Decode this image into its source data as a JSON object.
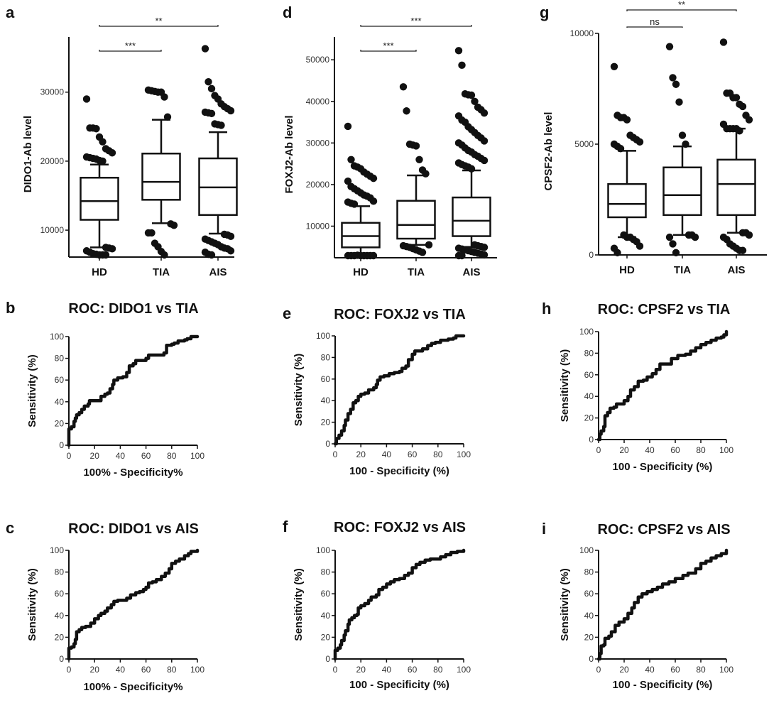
{
  "figure": {
    "panels": [
      "a",
      "b",
      "c",
      "d",
      "e",
      "f",
      "g",
      "h",
      "i"
    ]
  },
  "chart_data": [
    {
      "id": "a",
      "type": "box",
      "title": "",
      "panel_letter": "a",
      "ylabel": "DIDO1-Ab level",
      "xlabel": "",
      "categories": [
        "HD",
        "TIA",
        "AIS"
      ],
      "ylim": [
        6100,
        38000
      ],
      "yticks": [
        10000,
        20000,
        30000
      ],
      "ytick_labels": [
        "10000",
        "20000",
        "30000"
      ],
      "boxes": [
        {
          "name": "HD",
          "whisker_low": 7500,
          "q1": 11500,
          "median": 14200,
          "q3": 17600,
          "whisker_high": 19500,
          "outliers": [
            29000,
            24800,
            24800,
            24700,
            23500,
            22800,
            21800,
            21500,
            21200,
            20600,
            20500,
            20400,
            20300,
            20100,
            20000,
            7500,
            7400,
            7300,
            7000,
            6800,
            6600,
            6500,
            6400,
            6300,
            6200
          ]
        },
        {
          "name": "TIA",
          "whisker_low": 11000,
          "q1": 14400,
          "median": 17000,
          "q3": 21100,
          "whisker_high": 26000,
          "outliers": [
            30300,
            30200,
            30100,
            30000,
            30000,
            29300,
            26400,
            10900,
            10700,
            9600,
            9600,
            8100,
            7600,
            6900,
            6100
          ]
        },
        {
          "name": "AIS",
          "whisker_low": 9500,
          "q1": 12200,
          "median": 16200,
          "q3": 20400,
          "whisker_high": 24200,
          "outliers": [
            36300,
            31500,
            30500,
            29500,
            29000,
            28300,
            27900,
            27600,
            27300,
            27100,
            27000,
            26900,
            25400,
            25300,
            25200,
            9400,
            9300,
            9100,
            8700,
            8500,
            8300,
            8100,
            7900,
            7600,
            7400,
            7300,
            7000,
            6800,
            6500,
            6300
          ]
        }
      ],
      "significance": [
        {
          "from": "HD",
          "to": "TIA",
          "label": "***"
        },
        {
          "from": "HD",
          "to": "AIS",
          "label": "**"
        }
      ]
    },
    {
      "id": "d",
      "type": "box",
      "title": "",
      "panel_letter": "d",
      "ylabel": "FOXJ2-Ab level",
      "xlabel": "",
      "categories": [
        "HD",
        "TIA",
        "AIS"
      ],
      "ylim": [
        2400,
        55500
      ],
      "yticks": [
        10000,
        20000,
        30000,
        40000,
        50000
      ],
      "ytick_labels": [
        "10000",
        "20000",
        "30000",
        "40000",
        "50000"
      ],
      "boxes": [
        {
          "name": "HD",
          "whisker_low": 3000,
          "q1": 4900,
          "median": 7600,
          "q3": 10800,
          "whisker_high": 14800,
          "outliers": [
            34000,
            26000,
            24500,
            24200,
            23800,
            23000,
            22500,
            22000,
            21500,
            20800,
            19500,
            19000,
            18500,
            18000,
            17500,
            17200,
            16800,
            16000,
            15800,
            15500,
            15300,
            3000,
            2900,
            2800,
            2700,
            2600,
            2500,
            2500,
            2600,
            2800
          ]
        },
        {
          "name": "TIA",
          "whisker_low": 5500,
          "q1": 7000,
          "median": 10300,
          "q3": 16100,
          "whisker_high": 22200,
          "outliers": [
            43500,
            37700,
            29700,
            29500,
            29300,
            26000,
            23500,
            22600,
            5500,
            5300,
            5100,
            4900,
            4600,
            4300,
            4000,
            3700
          ]
        },
        {
          "name": "AIS",
          "whisker_low": 5000,
          "q1": 7600,
          "median": 11300,
          "q3": 16900,
          "whisker_high": 23400,
          "outliers": [
            52200,
            48700,
            41800,
            41600,
            41500,
            40000,
            38600,
            38000,
            37200,
            36500,
            35500,
            35000,
            33900,
            33200,
            32500,
            31800,
            31200,
            30500,
            30000,
            29500,
            28800,
            28200,
            27800,
            27200,
            26800,
            26300,
            25800,
            25200,
            24800,
            24500,
            24200,
            23800,
            5500,
            5300,
            5100,
            4900,
            4700,
            4500,
            4300,
            4100,
            3900,
            3700,
            3500,
            3300,
            3100,
            2900,
            2700
          ]
        }
      ],
      "significance": [
        {
          "from": "HD",
          "to": "TIA",
          "label": "***"
        },
        {
          "from": "HD",
          "to": "AIS",
          "label": "***"
        }
      ]
    },
    {
      "id": "g",
      "type": "box",
      "title": "",
      "panel_letter": "g",
      "ylabel": "CPSF2-Ab level",
      "xlabel": "",
      "categories": [
        "HD",
        "TIA",
        "AIS"
      ],
      "ylim": [
        0,
        10000
      ],
      "yticks": [
        0,
        5000,
        10000
      ],
      "ytick_labels": [
        "0",
        "5000",
        "10000"
      ],
      "boxes": [
        {
          "name": "HD",
          "whisker_low": 800,
          "q1": 1700,
          "median": 2300,
          "q3": 3200,
          "whisker_high": 4700,
          "outliers": [
            8500,
            6300,
            6200,
            6200,
            6100,
            5400,
            5300,
            5200,
            5100,
            5000,
            4900,
            4800,
            900,
            800,
            800,
            700,
            600,
            400,
            300,
            100
          ]
        },
        {
          "name": "TIA",
          "whisker_low": 900,
          "q1": 1800,
          "median": 2700,
          "q3": 3950,
          "whisker_high": 4900,
          "outliers": [
            9400,
            8000,
            7700,
            6900,
            5400,
            5000,
            900,
            900,
            800,
            800,
            500,
            100
          ]
        },
        {
          "name": "AIS",
          "whisker_low": 1000,
          "q1": 1800,
          "median": 3200,
          "q3": 4300,
          "whisker_high": 5700,
          "outliers": [
            9600,
            7300,
            7300,
            7100,
            7100,
            6800,
            6700,
            6300,
            6100,
            5900,
            5700,
            5700,
            5700,
            5700,
            5600,
            1000,
            1000,
            900,
            800,
            700,
            500,
            400,
            300,
            200,
            200
          ]
        }
      ],
      "significance": [
        {
          "from": "HD",
          "to": "TIA",
          "label": "ns"
        },
        {
          "from": "HD",
          "to": "AIS",
          "label": "**"
        }
      ]
    },
    {
      "id": "b",
      "type": "line",
      "panel_letter": "b",
      "title": "ROC: DIDO1 vs TIA",
      "xlabel": "100% - Specificity%",
      "ylabel": "Sensitivity (%)",
      "xlim": [
        0,
        100
      ],
      "ylim": [
        0,
        100
      ],
      "xticks": [
        0,
        20,
        40,
        60,
        80,
        100
      ],
      "yticks": [
        0,
        20,
        40,
        60,
        80,
        100
      ],
      "x": [
        0,
        0,
        2,
        4,
        5,
        6,
        8,
        10,
        12,
        15,
        16,
        20,
        23,
        25,
        28,
        30,
        32,
        34,
        35,
        38,
        42,
        45,
        47,
        50,
        52,
        58,
        60,
        62,
        72,
        74,
        76,
        80,
        82,
        85,
        90,
        92,
        95,
        100
      ],
      "y": [
        0,
        15,
        17,
        22,
        25,
        28,
        30,
        33,
        36,
        38,
        41,
        41,
        41,
        45,
        47,
        48,
        52,
        56,
        60,
        62,
        63,
        67,
        73,
        75,
        78,
        78,
        80,
        83,
        83,
        85,
        92,
        93,
        94,
        96,
        97,
        98,
        100,
        100
      ]
    },
    {
      "id": "c",
      "type": "line",
      "panel_letter": "c",
      "title": "ROC: DIDO1 vs AIS",
      "xlabel": "100% - Specificity%",
      "ylabel": "Sensitivity (%)",
      "xlim": [
        0,
        100
      ],
      "ylim": [
        0,
        100
      ],
      "xticks": [
        0,
        20,
        40,
        60,
        80,
        100
      ],
      "yticks": [
        0,
        20,
        40,
        60,
        80,
        100
      ],
      "x": [
        0,
        0,
        2,
        4,
        5,
        6,
        8,
        10,
        13,
        15,
        17,
        20,
        23,
        25,
        28,
        30,
        33,
        35,
        38,
        42,
        45,
        48,
        52,
        55,
        58,
        60,
        62,
        65,
        68,
        72,
        75,
        78,
        80,
        83,
        86,
        90,
        93,
        95,
        100
      ],
      "y": [
        0,
        10,
        11,
        14,
        18,
        25,
        27,
        29,
        30,
        30,
        33,
        37,
        40,
        42,
        44,
        47,
        50,
        53,
        54,
        54,
        56,
        59,
        61,
        62,
        64,
        66,
        70,
        71,
        73,
        76,
        79,
        83,
        88,
        90,
        92,
        95,
        97,
        99,
        100
      ]
    },
    {
      "id": "e",
      "type": "line",
      "panel_letter": "e",
      "title": "ROC: FOXJ2 vs TIA",
      "xlabel": "100 - Specificity (%)",
      "ylabel": "Sensitivity (%)",
      "xlim": [
        0,
        100
      ],
      "ylim": [
        0,
        100
      ],
      "xticks": [
        0,
        20,
        40,
        60,
        80,
        100
      ],
      "yticks": [
        0,
        20,
        40,
        60,
        80,
        100
      ],
      "x": [
        0,
        1,
        3,
        5,
        7,
        8,
        10,
        12,
        14,
        16,
        18,
        20,
        23,
        26,
        30,
        32,
        33,
        35,
        38,
        42,
        46,
        50,
        52,
        55,
        57,
        60,
        62,
        66,
        68,
        72,
        75,
        78,
        82,
        88,
        92,
        94,
        100
      ],
      "y": [
        0,
        5,
        8,
        12,
        17,
        22,
        28,
        32,
        38,
        40,
        44,
        46,
        47,
        50,
        52,
        55,
        59,
        62,
        63,
        65,
        66,
        67,
        70,
        72,
        78,
        83,
        86,
        86,
        88,
        91,
        93,
        94,
        96,
        97,
        98,
        100,
        100
      ]
    },
    {
      "id": "f",
      "type": "line",
      "panel_letter": "f",
      "title": "ROC: FOXJ2 vs AIS",
      "xlabel": "100 - Specificity (%)",
      "ylabel": "Sensitivity (%)",
      "xlim": [
        0,
        100
      ],
      "ylim": [
        0,
        100
      ],
      "xticks": [
        0,
        20,
        40,
        60,
        80,
        100
      ],
      "yticks": [
        0,
        20,
        40,
        60,
        80,
        100
      ],
      "x": [
        0,
        0,
        2,
        4,
        5,
        7,
        8,
        10,
        11,
        13,
        15,
        17,
        18,
        20,
        23,
        26,
        28,
        32,
        34,
        37,
        40,
        43,
        46,
        50,
        54,
        57,
        60,
        63,
        66,
        70,
        74,
        78,
        82,
        86,
        90,
        95,
        100
      ],
      "y": [
        0,
        8,
        10,
        13,
        17,
        22,
        26,
        32,
        36,
        38,
        40,
        41,
        47,
        49,
        51,
        54,
        57,
        59,
        64,
        66,
        69,
        71,
        73,
        74,
        77,
        79,
        84,
        87,
        89,
        91,
        92,
        92,
        94,
        96,
        98,
        99,
        100
      ]
    },
    {
      "id": "h",
      "type": "line",
      "panel_letter": "h",
      "title": "ROC: CPSF2 vs TIA",
      "xlabel": "100 - Specificity (%)",
      "ylabel": "Sensitivity (%)",
      "xlim": [
        0,
        100
      ],
      "ylim": [
        0,
        100
      ],
      "xticks": [
        0,
        20,
        40,
        60,
        80,
        100
      ],
      "yticks": [
        0,
        20,
        40,
        60,
        80,
        100
      ],
      "x": [
        0,
        1,
        2,
        4,
        5,
        7,
        9,
        12,
        14,
        18,
        20,
        23,
        25,
        28,
        31,
        35,
        38,
        42,
        45,
        48,
        53,
        57,
        62,
        68,
        72,
        76,
        80,
        84,
        88,
        92,
        96,
        98,
        100
      ],
      "y": [
        0,
        5,
        8,
        12,
        22,
        25,
        29,
        30,
        33,
        33,
        36,
        40,
        46,
        49,
        54,
        55,
        58,
        61,
        65,
        70,
        70,
        75,
        78,
        79,
        82,
        85,
        88,
        90,
        92,
        94,
        95,
        97,
        100
      ]
    },
    {
      "id": "i",
      "type": "line",
      "panel_letter": "i",
      "title": "ROC: CPSF2 vs AIS",
      "xlabel": "100 - Specificity (%)",
      "ylabel": "Sensitivity (%)",
      "xlim": [
        0,
        100
      ],
      "ylim": [
        0,
        100
      ],
      "xticks": [
        0,
        20,
        40,
        60,
        80,
        100
      ],
      "yticks": [
        0,
        20,
        40,
        60,
        80,
        100
      ],
      "x": [
        0,
        1,
        2,
        4,
        5,
        8,
        10,
        13,
        16,
        20,
        23,
        26,
        28,
        31,
        34,
        38,
        42,
        46,
        50,
        55,
        60,
        66,
        70,
        76,
        80,
        84,
        88,
        92,
        96,
        100
      ],
      "y": [
        0,
        5,
        12,
        13,
        19,
        21,
        25,
        31,
        34,
        37,
        42,
        47,
        52,
        57,
        60,
        62,
        64,
        66,
        69,
        71,
        74,
        77,
        79,
        83,
        88,
        90,
        93,
        95,
        97,
        100
      ]
    }
  ]
}
